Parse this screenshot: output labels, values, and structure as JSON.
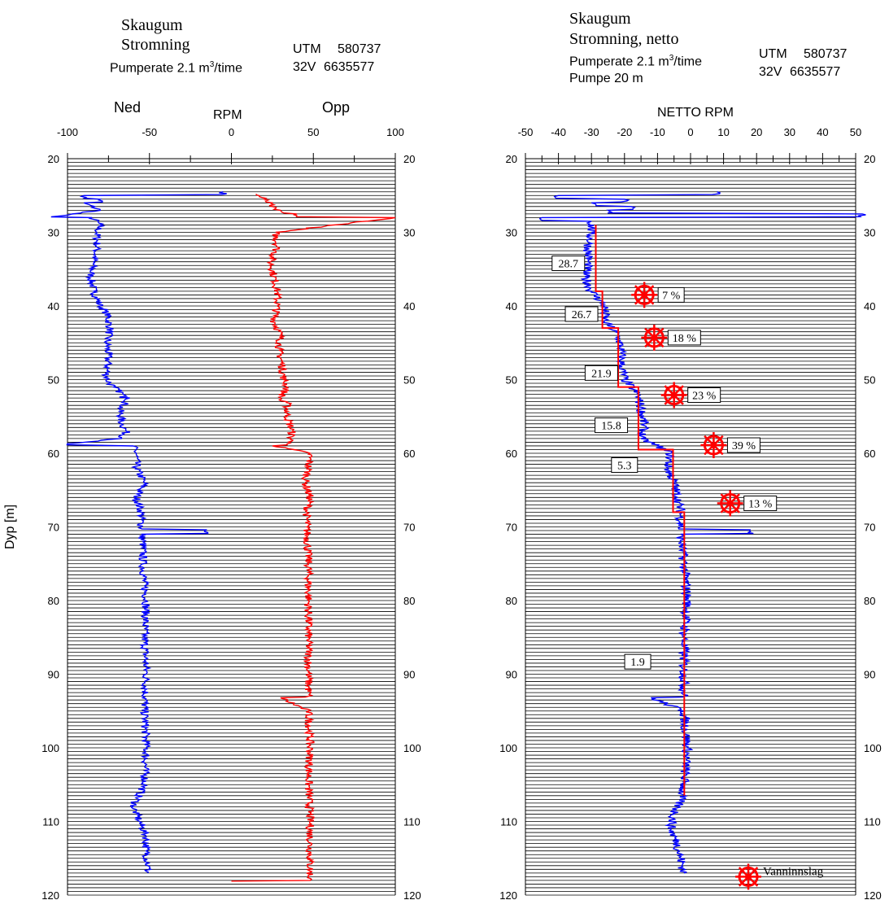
{
  "left": {
    "site": "Skaugum",
    "subtitle": "Stromning",
    "pump_label": "Pumperate",
    "pump_value": "2.1 m",
    "pump_unit": "/time",
    "utm_label": "UTM",
    "utm_e": "580737",
    "zone": "32V",
    "utm_n": "6635577",
    "down_label": "Ned",
    "up_label": "Opp",
    "axis_title": "RPM",
    "ylabel": "Dyp [m]"
  },
  "right": {
    "site": "Skaugum",
    "subtitle": "Stromning, netto",
    "pump_label": "Pumperate",
    "pump_value": "2.1 m",
    "pump_unit": "/time",
    "pump_depth": "Pumpe 20 m",
    "utm_label": "UTM",
    "utm_e": "580737",
    "zone": "32V",
    "utm_n": "6635577",
    "axis_title": "NETTO RPM",
    "legend_label": "Vanninnslag"
  },
  "colors": {
    "down": "#0000ff",
    "up": "#ff0000",
    "inflow": "#ff0000",
    "grid": "#000000"
  },
  "chart_data": [
    {
      "type": "line",
      "title": "Skaugum Stromning",
      "xlabel": "RPM",
      "ylabel": "Dyp [m]",
      "xlim": [
        -100,
        100
      ],
      "ylim": [
        120,
        20
      ],
      "x_ticks": [
        -100,
        -50,
        0,
        50,
        100
      ],
      "y_ticks": [
        20,
        30,
        40,
        50,
        60,
        70,
        80,
        90,
        100,
        110,
        120
      ],
      "grid": "horizontal lines about every 0.5 m",
      "series": [
        {
          "name": "Ned",
          "color": "blue",
          "depth": [
            24.5,
            25,
            25.5,
            26,
            27,
            27.9,
            28,
            29,
            30,
            32,
            34,
            36,
            38,
            40,
            41,
            43,
            45,
            47,
            49,
            50,
            51,
            52,
            52.5,
            54,
            56,
            57,
            58,
            58.7,
            59,
            60,
            62,
            64,
            66,
            68,
            70,
            70.4,
            71,
            72,
            75,
            78,
            80,
            85,
            90,
            95,
            100,
            105,
            108,
            109,
            110,
            112,
            114,
            116,
            117
          ],
          "rpm": [
            -5,
            -90,
            -80,
            -90,
            -80,
            -110,
            -85,
            -80,
            -82,
            -82,
            -84,
            -86,
            -84,
            -80,
            -76,
            -74,
            -76,
            -75,
            -76,
            -76,
            -72,
            -66,
            -62,
            -68,
            -67,
            -64,
            -67,
            -100,
            -60,
            -58,
            -58,
            -53,
            -58,
            -55,
            -55,
            -15,
            -55,
            -54,
            -54,
            -53,
            -52,
            -53,
            -52,
            -53,
            -52,
            -53,
            -60,
            -58,
            -56,
            -52,
            -52,
            -51,
            -51
          ]
        },
        {
          "name": "Opp",
          "color": "red",
          "depth": [
            24.8,
            25.5,
            26.5,
            27,
            27.5,
            28,
            30,
            32,
            34,
            36,
            38,
            40,
            42,
            44,
            46,
            48,
            50,
            51,
            52.5,
            53,
            55,
            57,
            58.6,
            59,
            60,
            62,
            64,
            66,
            68,
            70,
            75,
            80,
            85,
            90,
            93,
            93.2,
            95,
            100,
            105,
            110,
            115,
            118,
            118.1
          ],
          "rpm": [
            15,
            20,
            25,
            30,
            40,
            100,
            27,
            28,
            24,
            26,
            28,
            28,
            26,
            30,
            29,
            31,
            32,
            34,
            30,
            34,
            34,
            37,
            36,
            25,
            48,
            47,
            45,
            48,
            46,
            46,
            47,
            47,
            47,
            47,
            47,
            30,
            47,
            48,
            47,
            48,
            48,
            48,
            0
          ]
        }
      ]
    },
    {
      "type": "line",
      "title": "Skaugum Stromning, netto",
      "xlabel": "NETTO RPM",
      "ylabel": "Dyp [m]",
      "xlim": [
        -50,
        50
      ],
      "ylim": [
        120,
        20
      ],
      "x_ticks": [
        -50,
        -40,
        -30,
        -20,
        -10,
        0,
        10,
        20,
        30,
        40,
        50
      ],
      "y_ticks": [
        20,
        30,
        40,
        50,
        60,
        70,
        80,
        90,
        100,
        110,
        120
      ],
      "series": [
        {
          "name": "netto",
          "color": "blue",
          "depth": [
            24.5,
            25,
            25.5,
            26,
            26.5,
            27,
            27.5,
            28,
            28.5,
            30,
            32,
            34,
            36,
            38,
            40,
            42,
            44,
            46,
            48,
            50,
            52,
            54,
            56,
            58,
            59,
            60,
            62,
            64,
            66,
            68,
            70,
            70.4,
            71,
            75,
            80,
            85,
            90,
            93,
            93.2,
            95,
            100,
            105,
            107,
            109,
            111,
            113,
            115,
            117
          ],
          "rpm": [
            8,
            -40,
            -20,
            -30,
            -18,
            -25,
            52,
            -45,
            -30,
            -30,
            -31,
            -31,
            -32,
            -30,
            -26,
            -26,
            -22,
            -21,
            -21,
            -20,
            -16,
            -15,
            -14,
            -15,
            -10,
            -6,
            -7,
            -5,
            -4,
            -3,
            -3,
            18,
            -3,
            -2,
            -1,
            -2,
            -2,
            -2,
            -12,
            -2,
            -1,
            -2,
            -3,
            -5,
            -6,
            -4,
            -3,
            -2
          ]
        },
        {
          "name": "avg",
          "color": "red",
          "depth": [
            29,
            38,
            38,
            43,
            43,
            51,
            51,
            59.5,
            59.5,
            68,
            68,
            106.5
          ],
          "rpm": [
            -28.7,
            -28.7,
            -26.7,
            -26.7,
            -21.9,
            -21.9,
            -15.8,
            -15.8,
            -5.3,
            -5.3,
            -1.9,
            -1.9
          ]
        }
      ],
      "annotations": [
        {
          "text": "28.7",
          "x": -37,
          "y": 34.2
        },
        {
          "text": "26.7",
          "x": -33,
          "y": 41.1
        },
        {
          "text": "21.9",
          "x": -27,
          "y": 49.1
        },
        {
          "text": "15.8",
          "x": -24,
          "y": 56.2
        },
        {
          "text": "5.3",
          "x": -20,
          "y": 61.6
        },
        {
          "text": "1.9",
          "x": -16,
          "y": 88.3
        }
      ],
      "inflows": [
        {
          "label": "7 %",
          "x": -14,
          "y": 38.5
        },
        {
          "label": "18 %",
          "x": -11,
          "y": 44.3
        },
        {
          "label": "23 %",
          "x": -5,
          "y": 52.1
        },
        {
          "label": "39 %",
          "x": 7,
          "y": 58.9
        },
        {
          "label": "13 %",
          "x": 12,
          "y": 66.8
        }
      ]
    }
  ]
}
